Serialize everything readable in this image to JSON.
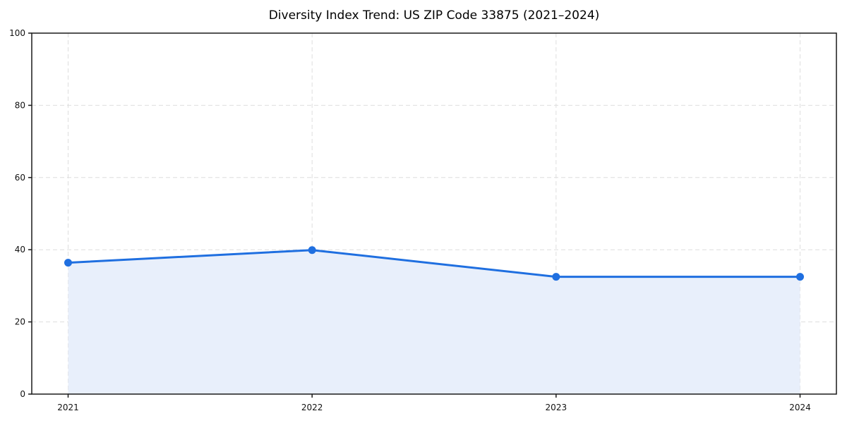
{
  "chart_data": {
    "type": "area",
    "title": "Diversity Index Trend: US ZIP Code 33875 (2021–2024)",
    "categories": [
      "2021",
      "2022",
      "2023",
      "2024"
    ],
    "values": [
      36.4,
      39.9,
      32.5,
      32.5
    ],
    "xlabel": "",
    "ylabel": "",
    "ylim": [
      0,
      100
    ],
    "yticks": [
      0,
      20,
      40,
      60,
      80,
      100
    ],
    "grid": true,
    "legend": false,
    "colors": {
      "line": "#1f6fe0",
      "point": "#1f6fe0",
      "fill": "#e8effb",
      "grid": "#dedede",
      "spine": "#1a1a1a",
      "tick_text": "#111111",
      "title_text": "#000000",
      "background": "#ffffff"
    }
  }
}
